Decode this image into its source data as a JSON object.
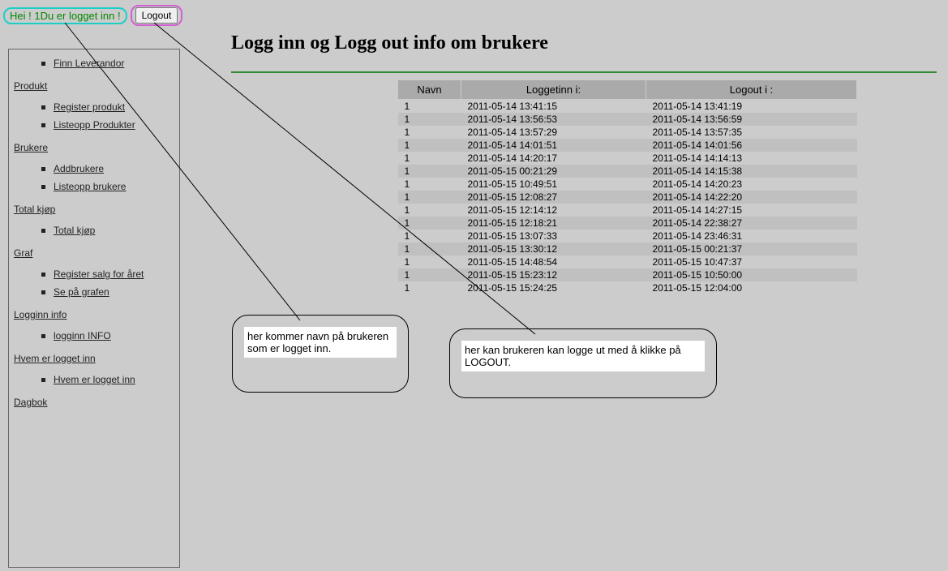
{
  "topbar": {
    "greeting": "Hei ! 1Du er logget inn !",
    "logout_label": "Logout"
  },
  "page_title": "Logg inn og Logg out info om brukere",
  "sidebar": {
    "top_link": "Finn Leverandor",
    "sections": [
      {
        "title": "Produkt",
        "items": [
          "Register produkt",
          "Listeopp Produkter"
        ]
      },
      {
        "title": "Brukere",
        "items": [
          "Addbrukere",
          "Listeopp brukere"
        ]
      },
      {
        "title": "Total kjøp",
        "items": [
          "Total kjøp"
        ]
      },
      {
        "title": "Graf",
        "items": [
          "Register salg for året",
          "Se på grafen"
        ]
      },
      {
        "title": "Logginn info",
        "items": [
          "logginn INFO"
        ]
      },
      {
        "title": "Hvem er logget inn",
        "items": [
          "Hvem er logget inn"
        ]
      },
      {
        "title": "Dagbok",
        "items": []
      }
    ]
  },
  "log_table": {
    "columns": [
      "Navn",
      "Loggetinn i:",
      "Logout i :"
    ],
    "rows": [
      [
        "1",
        "2011-05-14 13:41:15",
        "2011-05-14 13:41:19"
      ],
      [
        "1",
        "2011-05-14 13:56:53",
        "2011-05-14 13:56:59"
      ],
      [
        "1",
        "2011-05-14 13:57:29",
        "2011-05-14 13:57:35"
      ],
      [
        "1",
        "2011-05-14 14:01:51",
        "2011-05-14 14:01:56"
      ],
      [
        "1",
        "2011-05-14 14:20:17",
        "2011-05-14 14:14:13"
      ],
      [
        "1",
        "2011-05-15 00:21:29",
        "2011-05-14 14:15:38"
      ],
      [
        "1",
        "2011-05-15 10:49:51",
        "2011-05-14 14:20:23"
      ],
      [
        "1",
        "2011-05-15 12:08:27",
        "2011-05-14 14:22:20"
      ],
      [
        "1",
        "2011-05-15 12:14:12",
        "2011-05-14 14:27:15"
      ],
      [
        "1",
        "2011-05-15 12:18:21",
        "2011-05-14 22:38:27"
      ],
      [
        "1",
        "2011-05-15 13:07:33",
        "2011-05-14 23:46:31"
      ],
      [
        "1",
        "2011-05-15 13:30:12",
        "2011-05-15 00:21:37"
      ],
      [
        "1",
        "2011-05-15 14:48:54",
        "2011-05-15 10:47:37"
      ],
      [
        "1",
        "2011-05-15 15:23:12",
        "2011-05-15 10:50:00"
      ],
      [
        "1",
        "2011-05-15 15:24:25",
        "2011-05-15 12:04:00"
      ]
    ]
  },
  "callouts": {
    "c1": "her kommer navn på brukeren som er logget inn.",
    "c2": "her kan brukeren kan logge ut med å klikke på LOGOUT."
  },
  "colors": {
    "page_bg": "#cccccc",
    "greeting_border": "#1ad0c6",
    "greeting_text": "#008800",
    "logout_border": "#d060d0",
    "hr": "#338833",
    "th_bg": "#aaaaaa"
  }
}
